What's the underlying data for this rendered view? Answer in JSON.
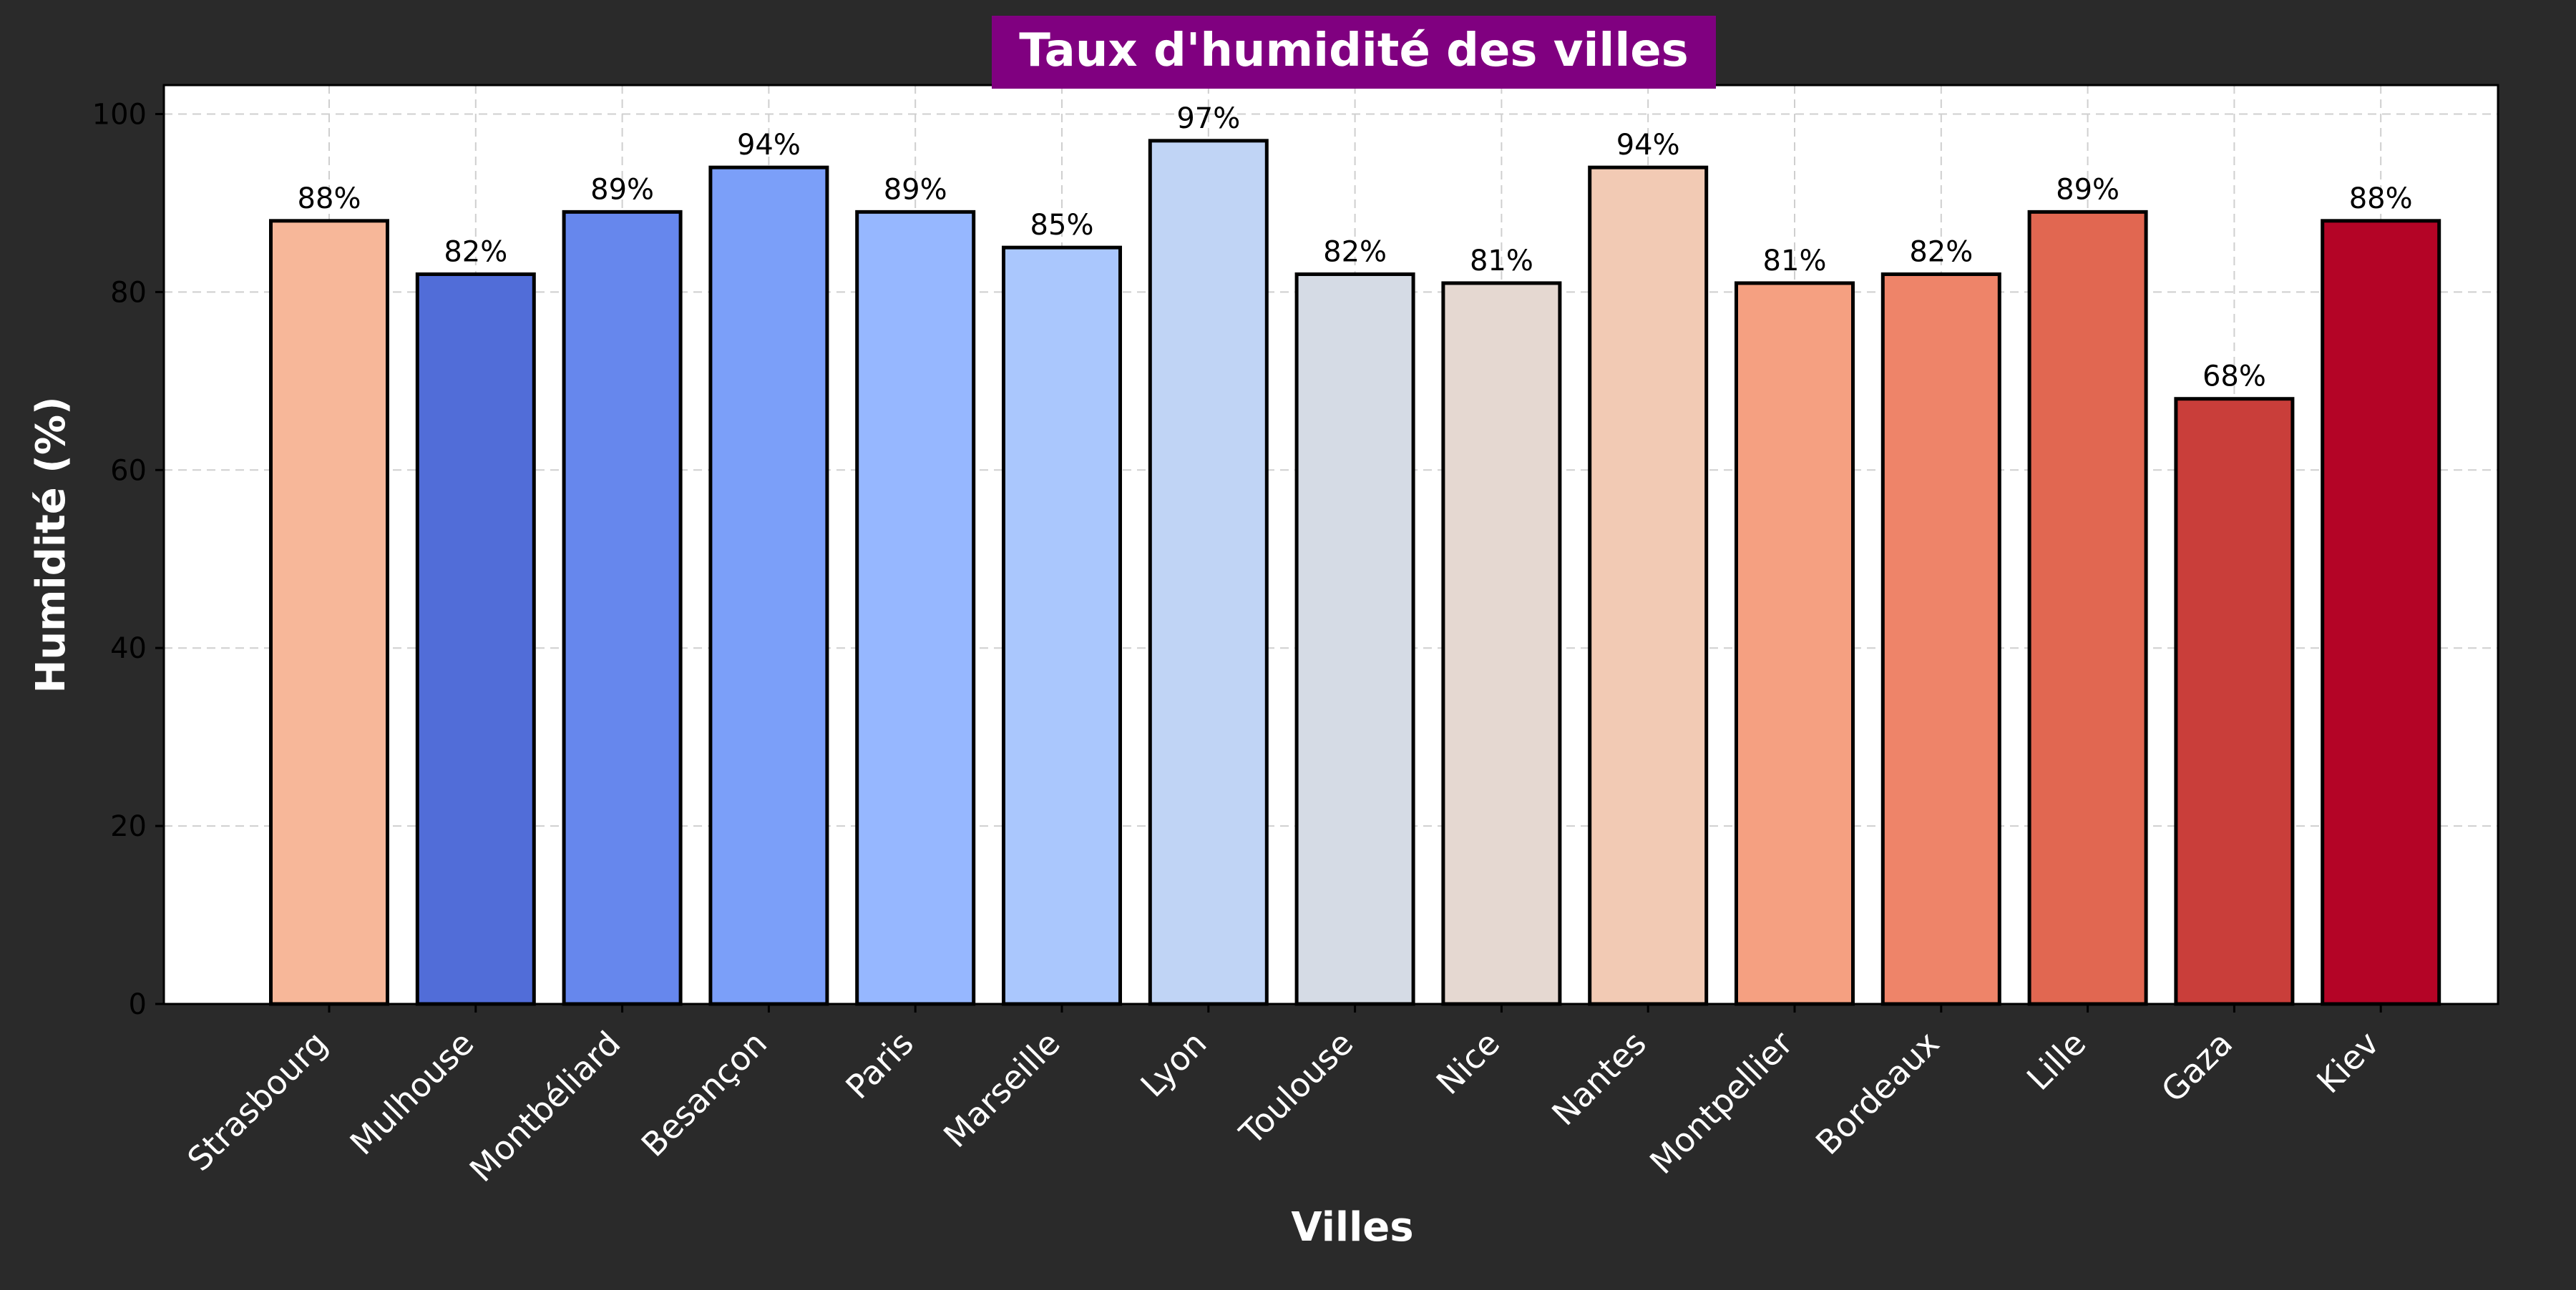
{
  "colors": {
    "background": "#2a2a2a",
    "plot_background": "#ffffff",
    "title_background": "#800080",
    "title_text": "#ffffff",
    "axis_text": "#ffffff",
    "tick_text_y": "#000000",
    "bar_edge": "#000000",
    "grid": "#cfcfcf",
    "data_label": "#000000"
  },
  "chart_data": {
    "type": "bar",
    "title": "Taux d'humidité des villes",
    "xlabel": "Villes",
    "ylabel": "Humidité (%)",
    "ylim": [
      0,
      100
    ],
    "yticks": [
      0,
      20,
      40,
      60,
      80,
      100
    ],
    "grid": true,
    "categories": [
      "Strasbourg",
      "Mulhouse",
      "Montbéliard",
      "Besançon",
      "Paris",
      "Marseille",
      "Lyon",
      "Toulouse",
      "Nice",
      "Nantes",
      "Montpellier",
      "Bordeaux",
      "Lille",
      "Gaza",
      "Kiev"
    ],
    "values": [
      88,
      82,
      89,
      94,
      89,
      85,
      97,
      82,
      81,
      94,
      81,
      82,
      89,
      68,
      88
    ],
    "data_labels": [
      "88%",
      "82%",
      "89%",
      "94%",
      "89%",
      "85%",
      "97%",
      "82%",
      "81%",
      "94%",
      "81%",
      "82%",
      "89%",
      "68%",
      "88%"
    ],
    "bar_colors": [
      "#f7b799",
      "#516dd8",
      "#6687ed",
      "#7b9ff9",
      "#96b7ff",
      "#aac7fd",
      "#c0d4f5",
      "#d5dbe5",
      "#e5d8d1",
      "#f2cab4",
      "#f5a081",
      "#ee8469",
      "#e16751",
      "#c93e3a",
      "#b40426"
    ]
  }
}
